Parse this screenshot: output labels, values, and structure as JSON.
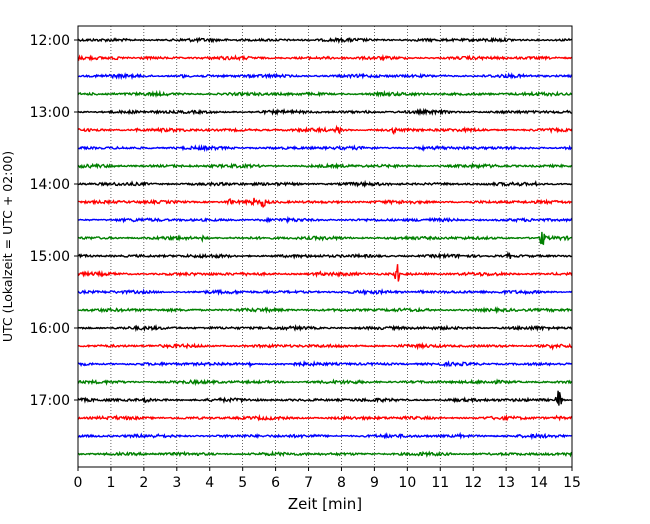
{
  "chart_data": {
    "type": "line",
    "title": "",
    "xlabel": "Zeit  [min]",
    "ylabel": "UTC (Lokalzeit = UTC + 02:00)",
    "xlim": [
      0,
      15
    ],
    "x_ticks": [
      "0",
      "1",
      "2",
      "3",
      "4",
      "5",
      "6",
      "7",
      "8",
      "9",
      "10",
      "11",
      "12",
      "13",
      "14",
      "15"
    ],
    "y_tick_labels": [
      "12:00",
      "13:00",
      "14:00",
      "15:00",
      "16:00",
      "17:00"
    ],
    "grid": "vertical dotted lines at each minute",
    "line_color_cycle": [
      "#000000",
      "#ff0000",
      "#0000ff",
      "#008000"
    ],
    "series": [
      {
        "start": "12:00",
        "events": []
      },
      {
        "start": "12:15",
        "events": [
          {
            "t": 1.2,
            "amp": 2
          }
        ]
      },
      {
        "start": "12:30",
        "events": [
          {
            "t": 3.2,
            "amp": 2
          }
        ]
      },
      {
        "start": "12:45",
        "events": []
      },
      {
        "start": "13:00",
        "events": [
          {
            "t": 8.8,
            "amp": 2
          }
        ]
      },
      {
        "start": "13:15",
        "events": [
          {
            "t": 1.8,
            "amp": 2
          },
          {
            "t": 7.9,
            "amp": 4
          },
          {
            "t": 9.6,
            "amp": 6
          }
        ]
      },
      {
        "start": "13:30",
        "events": [
          {
            "t": 10.5,
            "amp": 2
          }
        ]
      },
      {
        "start": "13:45",
        "events": []
      },
      {
        "start": "14:00",
        "events": [
          {
            "t": 3.8,
            "amp": 2
          },
          {
            "t": 13.9,
            "amp": 2
          }
        ]
      },
      {
        "start": "14:15",
        "events": [
          {
            "t": 4.6,
            "amp": 4
          },
          {
            "t": 5.3,
            "amp": 5
          },
          {
            "t": 5.6,
            "amp": 7
          }
        ]
      },
      {
        "start": "14:30",
        "events": []
      },
      {
        "start": "14:45",
        "events": [
          {
            "t": 3.8,
            "amp": 3
          },
          {
            "t": 14.1,
            "amp": 9
          }
        ]
      },
      {
        "start": "15:00",
        "events": [
          {
            "t": 13.1,
            "amp": 3
          }
        ]
      },
      {
        "start": "15:15",
        "events": [
          {
            "t": 7.3,
            "amp": 3
          },
          {
            "t": 9.7,
            "amp": 11
          }
        ]
      },
      {
        "start": "15:30",
        "events": [
          {
            "t": 5.8,
            "amp": 2
          },
          {
            "t": 10.4,
            "amp": 2
          }
        ]
      },
      {
        "start": "15:45",
        "events": []
      },
      {
        "start": "16:00",
        "events": []
      },
      {
        "start": "16:15",
        "events": [
          {
            "t": 14.4,
            "amp": 3
          }
        ]
      },
      {
        "start": "16:30",
        "events": [
          {
            "t": 5.2,
            "amp": 3
          }
        ]
      },
      {
        "start": "16:45",
        "events": []
      },
      {
        "start": "17:00",
        "events": [
          {
            "t": 2.1,
            "amp": 3
          },
          {
            "t": 14.6,
            "amp": 12
          }
        ]
      },
      {
        "start": "17:15",
        "events": [
          {
            "t": 14.6,
            "amp": 3
          }
        ]
      },
      {
        "start": "17:30",
        "events": [
          {
            "t": 11.6,
            "amp": 2
          }
        ]
      },
      {
        "start": "17:45",
        "events": []
      }
    ]
  }
}
